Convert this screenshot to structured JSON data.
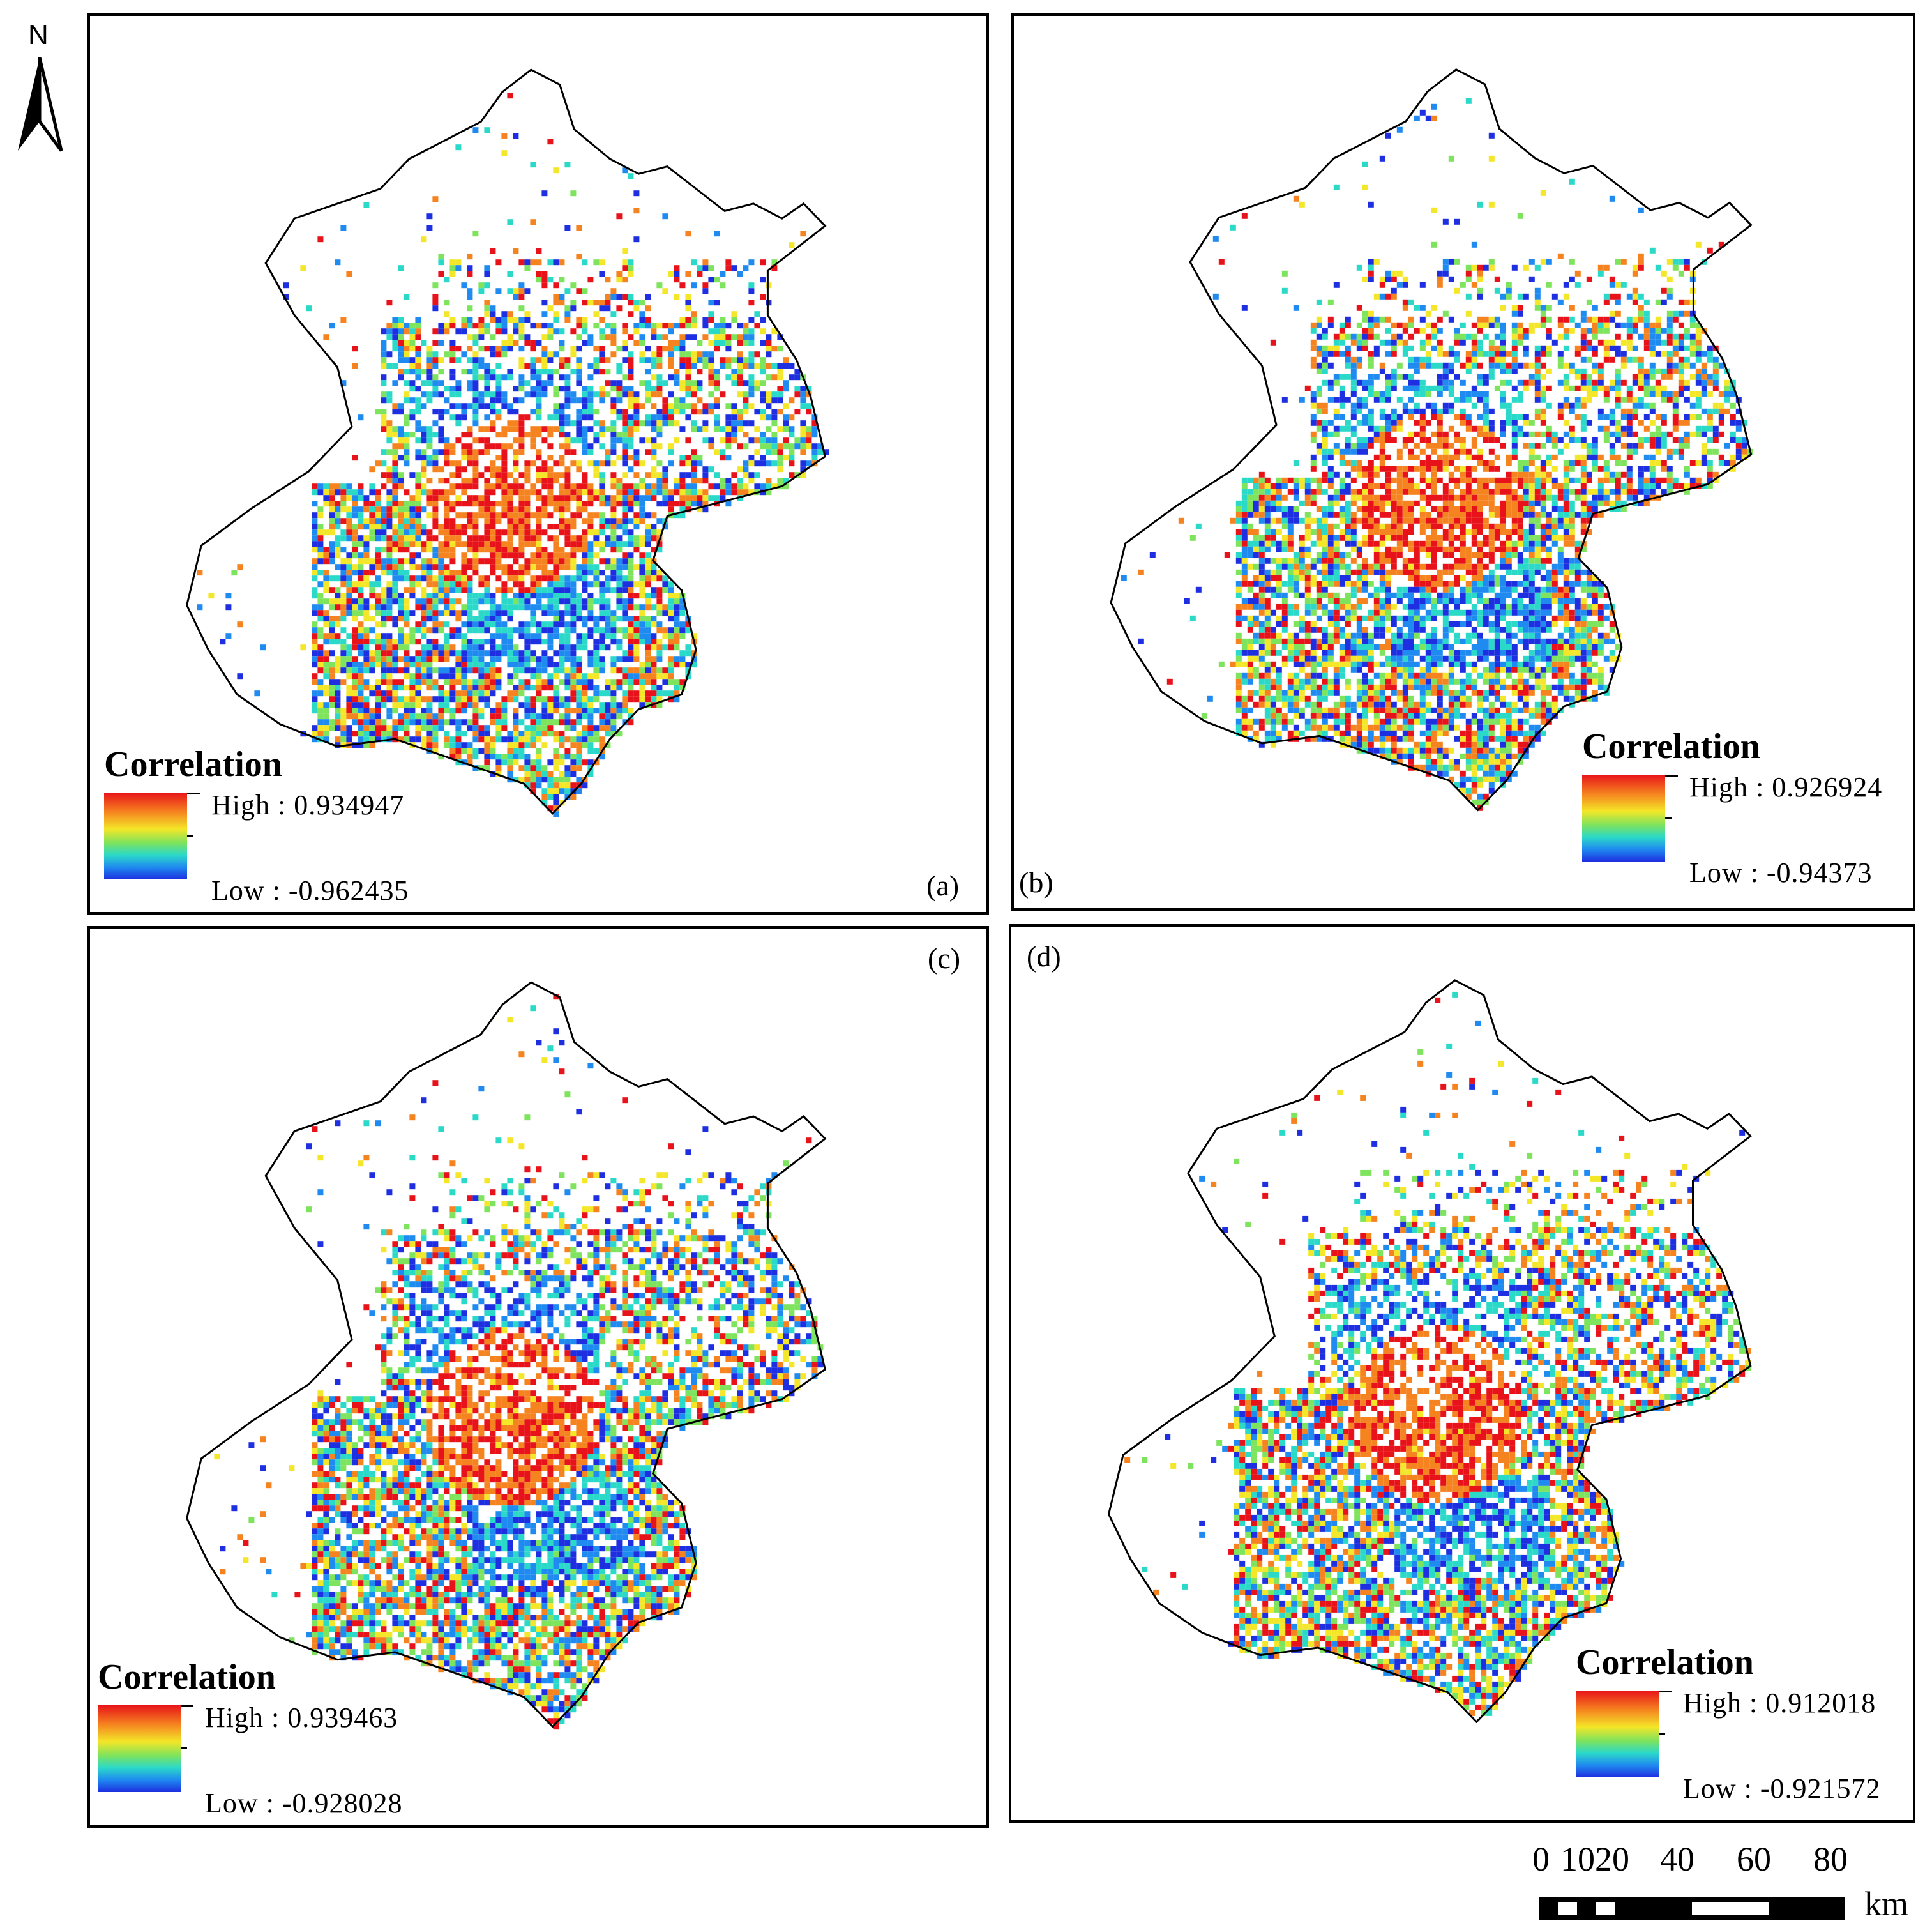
{
  "north_arrow": {
    "label": "N"
  },
  "panels": [
    {
      "id": "a",
      "label": "(a)",
      "legend": {
        "title": "Correlation",
        "high": "High : 0.934947",
        "low": "Low : -0.962435"
      }
    },
    {
      "id": "b",
      "label": "(b)",
      "legend": {
        "title": "Correlation",
        "high": "High : 0.926924",
        "low": "Low : -0.94373"
      }
    },
    {
      "id": "c",
      "label": "(c)",
      "legend": {
        "title": "Correlation",
        "high": "High : 0.939463",
        "low": "Low : -0.928028"
      }
    },
    {
      "id": "d",
      "label": "(d)",
      "legend": {
        "title": "Correlation",
        "high": "High : 0.912018",
        "low": "Low : -0.921572"
      }
    }
  ],
  "scalebar": {
    "ticks": [
      "0",
      "10",
      "20",
      "40",
      "60",
      "80"
    ],
    "unit": "km"
  },
  "colors": {
    "high": "#e8131a",
    "mid": "#f4e628",
    "low": "#1d2fe0",
    "outline": "#000000"
  }
}
